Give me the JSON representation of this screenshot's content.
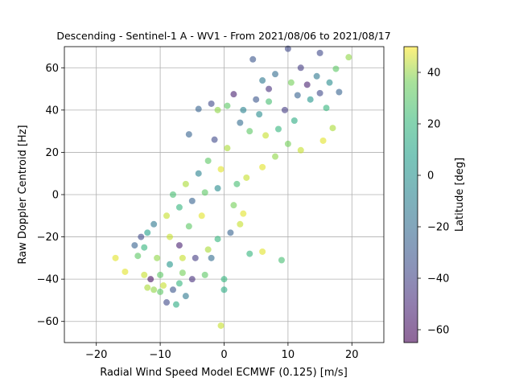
{
  "chart_data": {
    "type": "scatter",
    "title": "Descending - Sentinel-1 A - WV1 - From 2021/08/06 to 2021/08/17",
    "xlabel": "Radial Wind Speed Model ECMWF (0.125) [m/s]",
    "ylabel": "Raw Doppler Centroid [Hz]",
    "xlim": [
      -25,
      25
    ],
    "ylim": [
      -70,
      70
    ],
    "xticks": [
      "−20",
      "−10",
      "0",
      "10",
      "20"
    ],
    "yticks": [
      "−60",
      "−40",
      "−20",
      "0",
      "20",
      "40",
      "60"
    ],
    "grid": true,
    "colorbar": {
      "label": "Latitude [deg]",
      "range": [
        -65,
        50
      ],
      "ticks": [
        "−60",
        "−40",
        "−20",
        "0",
        "20",
        "40"
      ],
      "colormap": "viridis",
      "alpha": 0.6
    },
    "points": [
      [
        -17,
        -30,
        45
      ],
      [
        -15.5,
        -36.5,
        45
      ],
      [
        -12.5,
        -38,
        40
      ],
      [
        -12,
        -44,
        35
      ],
      [
        -11,
        -45,
        30
      ],
      [
        -10,
        -46,
        20
      ],
      [
        -9,
        -51,
        -40
      ],
      [
        -7.5,
        -52,
        5
      ],
      [
        -6,
        -48,
        -20
      ],
      [
        -5,
        -40,
        -50
      ],
      [
        -4,
        40.5,
        -30
      ],
      [
        -5.5,
        28.5,
        -30
      ],
      [
        -0.5,
        -62,
        40
      ],
      [
        0,
        -40,
        10
      ],
      [
        0,
        -45,
        5
      ],
      [
        4,
        -28,
        10
      ],
      [
        6,
        -27,
        45
      ],
      [
        9,
        -31,
        15
      ],
      [
        15.5,
        25.5,
        45
      ],
      [
        17,
        31.5,
        35
      ],
      [
        16,
        41,
        10
      ],
      [
        19.5,
        65,
        30
      ],
      [
        17.5,
        59.5,
        20
      ],
      [
        15,
        67,
        -40
      ],
      [
        18,
        48.5,
        -30
      ],
      [
        10,
        69,
        -40
      ],
      [
        6,
        54,
        -20
      ],
      [
        4.5,
        64,
        -35
      ],
      [
        1.5,
        47.5,
        -55
      ],
      [
        -2,
        43,
        -40
      ],
      [
        -1,
        40,
        30
      ],
      [
        0.5,
        42,
        20
      ],
      [
        2.5,
        34,
        -25
      ],
      [
        5.5,
        38,
        -10
      ],
      [
        7,
        44,
        15
      ],
      [
        11,
        35,
        5
      ],
      [
        12,
        21,
        40
      ],
      [
        10,
        24,
        25
      ],
      [
        8,
        18,
        30
      ],
      [
        6,
        13,
        45
      ],
      [
        3.5,
        8,
        40
      ],
      [
        2,
        5,
        15
      ],
      [
        -1,
        3,
        -10
      ],
      [
        -3,
        1,
        20
      ],
      [
        -5,
        -3,
        -30
      ],
      [
        -7,
        -6,
        10
      ],
      [
        -9,
        -10,
        40
      ],
      [
        -11,
        -14,
        -20
      ],
      [
        -12,
        -18,
        0
      ],
      [
        -13,
        -20,
        -40
      ],
      [
        -12.5,
        -25,
        10
      ],
      [
        -10.5,
        -30,
        30
      ],
      [
        -8.5,
        -33,
        -5
      ],
      [
        -6.5,
        -37,
        25
      ],
      [
        -4.5,
        -30,
        -45
      ],
      [
        -2.5,
        -26,
        35
      ],
      [
        -1,
        -21,
        10
      ],
      [
        1,
        -18,
        -30
      ],
      [
        2.5,
        -14,
        40
      ],
      [
        3,
        -9,
        45
      ],
      [
        1.5,
        -5,
        25
      ],
      [
        -0.5,
        12,
        45
      ],
      [
        -2.5,
        16,
        20
      ],
      [
        -4,
        10,
        -15
      ],
      [
        -6,
        5,
        35
      ],
      [
        -8,
        0,
        15
      ],
      [
        -8.5,
        -20,
        40
      ],
      [
        -7,
        -24,
        -55
      ],
      [
        -5.5,
        -15,
        20
      ],
      [
        -3.5,
        -10,
        45
      ],
      [
        0.5,
        22,
        35
      ],
      [
        -1.5,
        26,
        -40
      ],
      [
        4,
        30,
        20
      ],
      [
        6.5,
        28,
        40
      ],
      [
        8.5,
        31,
        10
      ],
      [
        9.5,
        40,
        -45
      ],
      [
        11.5,
        47,
        -30
      ],
      [
        13,
        52,
        -55
      ],
      [
        14.5,
        56,
        -20
      ],
      [
        12,
        60,
        -45
      ],
      [
        8,
        57,
        -25
      ],
      [
        7,
        50,
        -50
      ],
      [
        5,
        45,
        -35
      ],
      [
        3,
        40,
        -15
      ],
      [
        10.5,
        53,
        25
      ],
      [
        13.5,
        45,
        -5
      ],
      [
        15,
        48,
        -40
      ],
      [
        16.5,
        53,
        -10
      ],
      [
        -11.5,
        -40,
        -60
      ],
      [
        -10,
        -38,
        20
      ],
      [
        -9.5,
        -43,
        40
      ],
      [
        -8,
        -45,
        -35
      ],
      [
        -7,
        -42,
        10
      ],
      [
        -6.5,
        -30,
        40
      ],
      [
        -3,
        -38,
        20
      ],
      [
        -2,
        -30,
        -25
      ],
      [
        -13.5,
        -29,
        20
      ],
      [
        -14,
        -24,
        -30
      ]
    ]
  }
}
